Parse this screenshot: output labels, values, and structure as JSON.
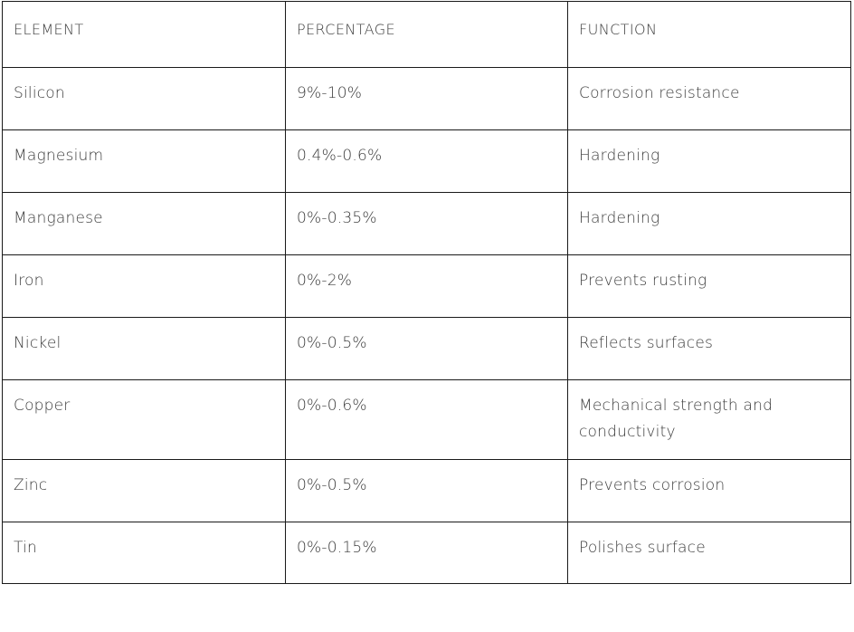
{
  "table": {
    "headers": [
      "ELEMENT",
      "PERCENTAGE",
      "FUNCTION"
    ],
    "rows": [
      {
        "element": "Silicon",
        "percentage": "9%-10%",
        "function": "Corrosion resistance"
      },
      {
        "element": "Magnesium",
        "percentage": "0.4%-0.6%",
        "function": "Hardening"
      },
      {
        "element": "Manganese",
        "percentage": "0%-0.35%",
        "function": "Hardening"
      },
      {
        "element": "Iron",
        "percentage": "0%-2%",
        "function": "Prevents rusting"
      },
      {
        "element": "Nickel",
        "percentage": "0%-0.5%",
        "function": "Reflects surfaces"
      },
      {
        "element": "Copper",
        "percentage": "0%-0.6%",
        "function": "Mechanical strength and conductivity"
      },
      {
        "element": "Zinc",
        "percentage": "0%-0.5%",
        "function": "Prevents corrosion"
      },
      {
        "element": "Tin",
        "percentage": "0%-0.15%",
        "function": "Polishes surface"
      }
    ]
  }
}
